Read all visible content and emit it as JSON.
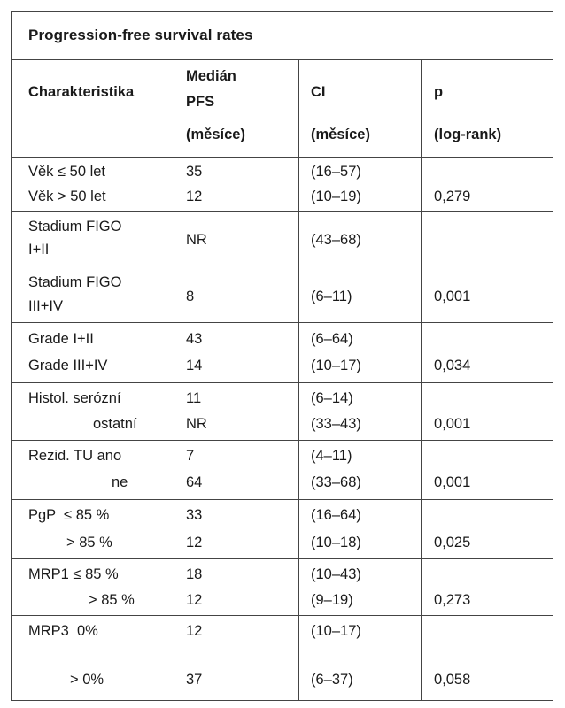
{
  "table": {
    "title": "Progression-free survival rates",
    "headers": {
      "col1": "Charakteristika",
      "col2_line1": "Medián",
      "col2_line2": "PFS",
      "col2_line3": "(měsíce)",
      "col3_line1": "CI",
      "col3_line3": "(měsíce)",
      "col4_line1": "p",
      "col4_line3": "(log-rank)"
    },
    "groups": [
      {
        "rows": [
          {
            "label": "Věk ≤ 50 let",
            "median": "35",
            "ci": "(16–57)",
            "p": ""
          },
          {
            "label": "Věk > 50 let",
            "median": "12",
            "ci": "(10–19)",
            "p": "0,279"
          }
        ]
      },
      {
        "rows": [
          {
            "label": "Stadium FIGO",
            "label2": "I+II",
            "median": "NR",
            "ci": "(43–68)",
            "p": ""
          },
          {
            "label": "Stadium FIGO",
            "label2": "III+IV",
            "median": "8",
            "ci": "(6–11)",
            "p": "0,001"
          }
        ]
      },
      {
        "rows": [
          {
            "label": "Grade I+II",
            "median": "43",
            "ci": "(6–64)",
            "p": ""
          },
          {
            "label": "Grade III+IV",
            "median": "14",
            "ci": "(10–17)",
            "p": "0,034"
          }
        ]
      },
      {
        "rows": [
          {
            "label": "Histol. serózní",
            "median": "11",
            "ci": "(6–14)",
            "p": ""
          },
          {
            "label": "ostatní",
            "median": "NR",
            "ci": "(33–43)",
            "p": "0,001"
          }
        ]
      },
      {
        "rows": [
          {
            "label": "Rezid. TU ano",
            "median": "7",
            "ci": "(4–11)",
            "p": ""
          },
          {
            "label": "ne",
            "median": "64",
            "ci": "(33–68)",
            "p": "0,001"
          }
        ]
      },
      {
        "rows": [
          {
            "label": "PgP  ≤ 85 %",
            "median": "33",
            "ci": "(16–64)",
            "p": ""
          },
          {
            "label": "> 85 %",
            "median": "12",
            "ci": "(10–18)",
            "p": "0,025"
          }
        ]
      },
      {
        "rows": [
          {
            "label": "MRP1 ≤ 85 %",
            "median": "18",
            "ci": "(10–43)",
            "p": ""
          },
          {
            "label": "> 85 %",
            "median": "12",
            "ci": "(9–19)",
            "p": "0,273"
          }
        ]
      },
      {
        "rows": [
          {
            "label": "MRP3  0%",
            "median": "12",
            "ci": "(10–17)",
            "p": ""
          },
          {
            "label": "> 0%",
            "median": "37",
            "ci": "(6–37)",
            "p": "0,058"
          }
        ]
      }
    ]
  }
}
